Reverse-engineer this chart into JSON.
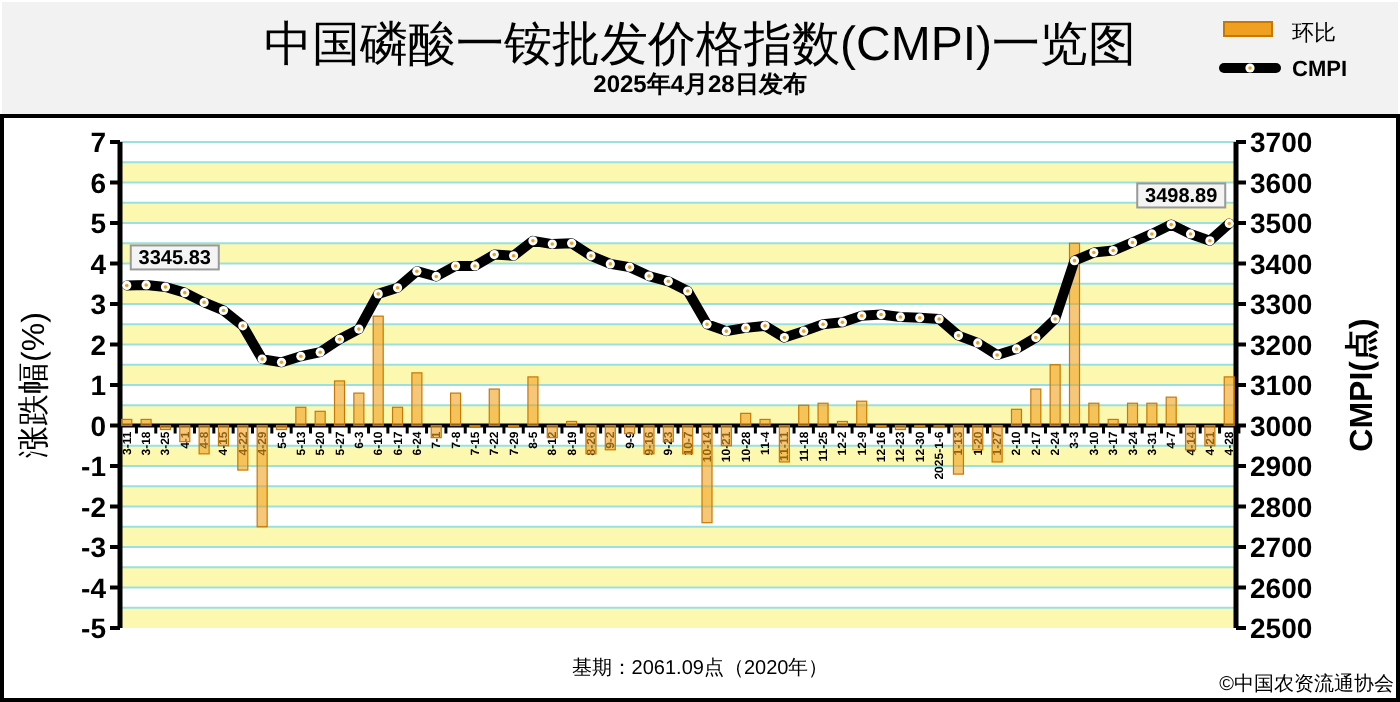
{
  "chart_data": {
    "type": "bar",
    "title": "中国磷酸一铵批发价格指数(CMPI)一览图",
    "subtitle": "2025年4月28日发布",
    "ylabel": "涨跌幅(%)",
    "y2label": "CMPI(点)",
    "categories": [
      "3-11",
      "3-18",
      "3-25",
      "4-1",
      "4-8",
      "4-15",
      "4-22",
      "4-29",
      "5-6",
      "5-13",
      "5-20",
      "5-27",
      "6-3",
      "6-10",
      "6-17",
      "6-24",
      "7-1",
      "7-8",
      "7-15",
      "7-22",
      "7-29",
      "8-5",
      "8-12",
      "8-19",
      "8-26",
      "9-2",
      "9-9",
      "9-16",
      "9-23",
      "10-7",
      "10-14",
      "10-21",
      "10-28",
      "11-4",
      "11-11",
      "11-18",
      "11-25",
      "12-2",
      "12-9",
      "12-16",
      "12-23",
      "12-30",
      "2025-1-6",
      "1-13",
      "1-20",
      "1-27",
      "2-10",
      "2-17",
      "2-24",
      "3-3",
      "3-10",
      "3-17",
      "3-24",
      "3-31",
      "4-7",
      "4-14",
      "4-21",
      "4-28"
    ],
    "series": [
      {
        "name": "环比",
        "color": "#f0a020",
        "values": [
          0.15,
          0.15,
          -0.1,
          -0.4,
          -0.7,
          -0.5,
          -1.1,
          -2.5,
          -0.1,
          0.45,
          0.35,
          1.1,
          0.8,
          2.7,
          0.45,
          1.3,
          -0.3,
          0.8,
          0,
          0.9,
          0,
          1.2,
          -0.3,
          0.1,
          -0.7,
          -0.6,
          -0.2,
          -0.7,
          -0.4,
          -0.7,
          -2.4,
          -0.5,
          0.3,
          0.15,
          -0.9,
          0.5,
          0.55,
          0.1,
          0.6,
          0,
          -0.1,
          0,
          -0.05,
          -1.2,
          -0.6,
          -0.9,
          0.4,
          0.9,
          1.5,
          4.5,
          0.55,
          0.15,
          0.55,
          0.55,
          0.7,
          -0.6,
          -0.5,
          1.2
        ]
      },
      {
        "name": "CMPI",
        "type": "line",
        "axis": "y2",
        "color": "#000000",
        "marker": "circle",
        "values": [
          3345.83,
          3347,
          3342,
          3328,
          3304,
          3284,
          3246,
          3164,
          3156,
          3171,
          3181,
          3213,
          3238,
          3325,
          3340,
          3381,
          3368,
          3394,
          3394,
          3422,
          3419,
          3456,
          3448,
          3450,
          3419,
          3399,
          3391,
          3369,
          3356,
          3332,
          3250,
          3233,
          3241,
          3246,
          3217,
          3233,
          3250,
          3255,
          3271,
          3274,
          3268,
          3266,
          3263,
          3222,
          3204,
          3174,
          3189,
          3217,
          3263,
          3407,
          3427,
          3432,
          3452,
          3473,
          3496,
          3473,
          3456,
          3498.89
        ],
        "value_labels": [
          "3345.83",
          null,
          null,
          null,
          null,
          null,
          null,
          null,
          null,
          null,
          null,
          null,
          null,
          null,
          null,
          null,
          null,
          null,
          null,
          null,
          null,
          null,
          null,
          null,
          null,
          null,
          null,
          null,
          null,
          null,
          null,
          null,
          null,
          null,
          null,
          null,
          null,
          null,
          null,
          null,
          null,
          null,
          null,
          null,
          null,
          null,
          null,
          null,
          null,
          null,
          null,
          null,
          null,
          null,
          null,
          null,
          null,
          "3498.89"
        ]
      }
    ],
    "ylim": [
      -5,
      7
    ],
    "yticks": [
      -5,
      -4,
      -3,
      -2,
      -1,
      0,
      1,
      2,
      3,
      4,
      5,
      6,
      7
    ],
    "y2lim": [
      2500,
      3700
    ],
    "y2ticks": [
      2500,
      2600,
      2700,
      2800,
      2900,
      3000,
      3100,
      3200,
      3300,
      3400,
      3500,
      3600,
      3700
    ],
    "grid": "y",
    "legend": "top right",
    "annotations": [
      "基期：2061.09点（2020年）",
      "©中国农资流通协会"
    ]
  }
}
